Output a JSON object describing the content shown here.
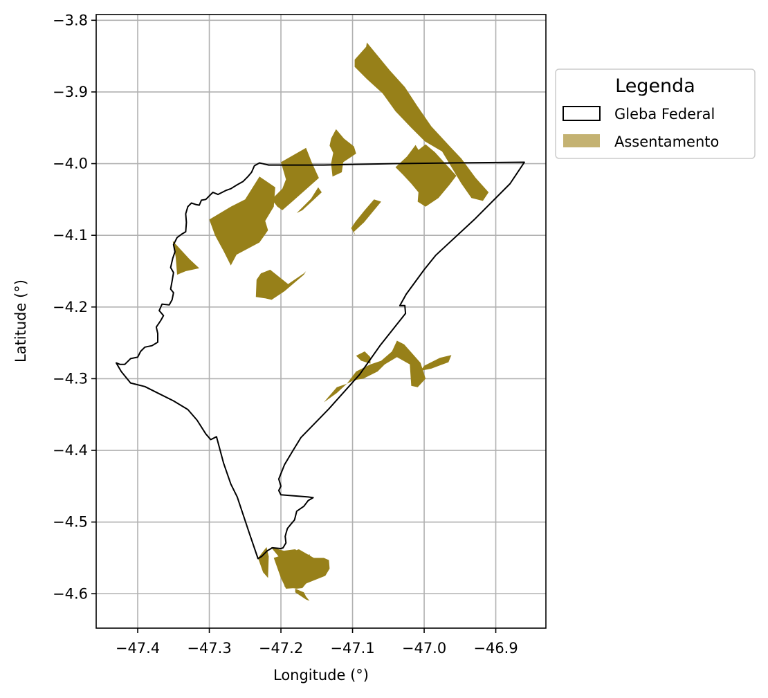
{
  "chart_data": {
    "type": "map",
    "xlabel": "Longitude (°)",
    "ylabel": "Latitude (°)",
    "xlim": [
      -47.458,
      -46.83
    ],
    "ylim": [
      -4.648,
      -3.792
    ],
    "x_ticks": [
      -47.4,
      -47.3,
      -47.2,
      -47.1,
      -47.0,
      -46.9
    ],
    "x_tick_labels": [
      "−47.4",
      "−47.3",
      "−47.2",
      "−47.1",
      "−47.0",
      "−46.9"
    ],
    "y_ticks": [
      -3.8,
      -3.9,
      -4.0,
      -4.1,
      -4.2,
      -4.3,
      -4.4,
      -4.5,
      -4.6
    ],
    "y_tick_labels": [
      "−3.8",
      "−3.9",
      "−4.0",
      "−4.1",
      "−4.2",
      "−4.3",
      "−4.4",
      "−4.5",
      "−4.6"
    ],
    "grid": true,
    "legend": {
      "title": "Legenda",
      "placement": "outside-right-top",
      "entries": [
        {
          "label": "Gleba Federal",
          "style": "outline",
          "edge_color": "#000000"
        },
        {
          "label": "Assentamento",
          "style": "fill",
          "color": "#c4b272"
        }
      ]
    },
    "colors": {
      "assentamento": "#978019",
      "gleba_edge": "#000000",
      "grid": "#b0b0b0"
    },
    "gleba_federal": [
      [
        -47.23,
        -3.999
      ],
      [
        -47.217,
        -4.002
      ],
      [
        -47.14,
        -4.002
      ],
      [
        -47.04,
        -4.0
      ],
      [
        -46.96,
        -3.999
      ],
      [
        -46.86,
        -3.998
      ],
      [
        -46.88,
        -4.028
      ],
      [
        -46.93,
        -4.078
      ],
      [
        -46.984,
        -4.128
      ],
      [
        -47.0,
        -4.148
      ],
      [
        -47.025,
        -4.182
      ],
      [
        -47.034,
        -4.198
      ],
      [
        -47.027,
        -4.198
      ],
      [
        -47.026,
        -4.209
      ],
      [
        -47.061,
        -4.253
      ],
      [
        -47.09,
        -4.294
      ],
      [
        -47.133,
        -4.342
      ],
      [
        -47.172,
        -4.382
      ],
      [
        -47.183,
        -4.4
      ],
      [
        -47.195,
        -4.42
      ],
      [
        -47.203,
        -4.44
      ],
      [
        -47.2,
        -4.45
      ],
      [
        -47.203,
        -4.456
      ],
      [
        -47.2,
        -4.462
      ],
      [
        -47.162,
        -4.465
      ],
      [
        -47.155,
        -4.466
      ],
      [
        -47.162,
        -4.47
      ],
      [
        -47.168,
        -4.478
      ],
      [
        -47.178,
        -4.485
      ],
      [
        -47.181,
        -4.497
      ],
      [
        -47.186,
        -4.503
      ],
      [
        -47.191,
        -4.509
      ],
      [
        -47.193,
        -4.516
      ],
      [
        -47.194,
        -4.52
      ],
      [
        -47.193,
        -4.529
      ],
      [
        -47.197,
        -4.536
      ],
      [
        -47.2,
        -4.537
      ],
      [
        -47.212,
        -4.536
      ],
      [
        -47.219,
        -4.54
      ],
      [
        -47.227,
        -4.548
      ],
      [
        -47.232,
        -4.551
      ],
      [
        -47.244,
        -4.516
      ],
      [
        -47.261,
        -4.465
      ],
      [
        -47.27,
        -4.447
      ],
      [
        -47.28,
        -4.418
      ],
      [
        -47.29,
        -4.381
      ],
      [
        -47.298,
        -4.385
      ],
      [
        -47.305,
        -4.377
      ],
      [
        -47.317,
        -4.358
      ],
      [
        -47.33,
        -4.343
      ],
      [
        -47.35,
        -4.331
      ],
      [
        -47.37,
        -4.321
      ],
      [
        -47.39,
        -4.311
      ],
      [
        -47.41,
        -4.306
      ],
      [
        -47.423,
        -4.29
      ],
      [
        -47.43,
        -4.278
      ],
      [
        -47.425,
        -4.28
      ],
      [
        -47.418,
        -4.28
      ],
      [
        -47.41,
        -4.272
      ],
      [
        -47.4,
        -4.27
      ],
      [
        -47.396,
        -4.262
      ],
      [
        -47.39,
        -4.256
      ],
      [
        -47.38,
        -4.254
      ],
      [
        -47.372,
        -4.249
      ],
      [
        -47.372,
        -4.237
      ],
      [
        -47.374,
        -4.228
      ],
      [
        -47.368,
        -4.219
      ],
      [
        -47.364,
        -4.212
      ],
      [
        -47.37,
        -4.205
      ],
      [
        -47.366,
        -4.196
      ],
      [
        -47.356,
        -4.197
      ],
      [
        -47.352,
        -4.19
      ],
      [
        -47.35,
        -4.18
      ],
      [
        -47.354,
        -4.175
      ],
      [
        -47.352,
        -4.164
      ],
      [
        -47.35,
        -4.152
      ],
      [
        -47.354,
        -4.145
      ],
      [
        -47.351,
        -4.132
      ],
      [
        -47.348,
        -4.123
      ],
      [
        -47.35,
        -4.113
      ],
      [
        -47.345,
        -4.103
      ],
      [
        -47.338,
        -4.098
      ],
      [
        -47.333,
        -4.095
      ],
      [
        -47.332,
        -4.082
      ],
      [
        -47.333,
        -4.07
      ],
      [
        -47.33,
        -4.06
      ],
      [
        -47.325,
        -4.055
      ],
      [
        -47.319,
        -4.057
      ],
      [
        -47.314,
        -4.058
      ],
      [
        -47.311,
        -4.051
      ],
      [
        -47.305,
        -4.05
      ],
      [
        -47.3,
        -4.045
      ],
      [
        -47.295,
        -4.04
      ],
      [
        -47.288,
        -4.043
      ],
      [
        -47.282,
        -4.04
      ],
      [
        -47.276,
        -4.037
      ],
      [
        -47.27,
        -4.035
      ],
      [
        -47.262,
        -4.03
      ],
      [
        -47.253,
        -4.025
      ],
      [
        -47.246,
        -4.018
      ],
      [
        -47.241,
        -4.012
      ],
      [
        -47.237,
        -4.003
      ],
      [
        -47.23,
        -3.999
      ]
    ],
    "assentamentos": [
      [
        [
          -47.097,
          -3.855
        ],
        [
          -47.081,
          -3.837
        ],
        [
          -47.08,
          -3.831
        ],
        [
          -47.048,
          -3.87
        ],
        [
          -47.027,
          -3.893
        ],
        [
          -47.01,
          -3.919
        ],
        [
          -46.99,
          -3.948
        ],
        [
          -46.965,
          -3.975
        ],
        [
          -46.948,
          -3.993
        ],
        [
          -46.928,
          -4.02
        ],
        [
          -46.91,
          -4.04
        ],
        [
          -46.918,
          -4.052
        ],
        [
          -46.934,
          -4.048
        ],
        [
          -46.948,
          -4.028
        ],
        [
          -46.96,
          -4.008
        ],
        [
          -46.975,
          -3.983
        ],
        [
          -46.999,
          -3.969
        ],
        [
          -47.018,
          -3.95
        ],
        [
          -47.04,
          -3.927
        ],
        [
          -47.058,
          -3.902
        ],
        [
          -47.08,
          -3.882
        ],
        [
          -47.097,
          -3.865
        ]
      ],
      [
        [
          -47.04,
          -4.005
        ],
        [
          -47.024,
          -3.99
        ],
        [
          -47.012,
          -3.974
        ],
        [
          -47.008,
          -3.981
        ],
        [
          -46.998,
          -3.973
        ],
        [
          -46.985,
          -3.984
        ],
        [
          -46.955,
          -4.017
        ],
        [
          -46.965,
          -4.03
        ],
        [
          -46.98,
          -4.048
        ],
        [
          -46.998,
          -4.06
        ],
        [
          -47.009,
          -4.053
        ],
        [
          -47.008,
          -4.04
        ],
        [
          -47.018,
          -4.028
        ],
        [
          -47.03,
          -4.015
        ]
      ],
      [
        [
          -47.13,
          -3.965
        ],
        [
          -47.123,
          -3.952
        ],
        [
          -47.112,
          -3.965
        ],
        [
          -47.098,
          -3.976
        ],
        [
          -47.095,
          -3.986
        ],
        [
          -47.113,
          -3.998
        ],
        [
          -47.115,
          -4.012
        ],
        [
          -47.128,
          -4.018
        ],
        [
          -47.13,
          -4.0
        ],
        [
          -47.127,
          -3.985
        ],
        [
          -47.132,
          -3.975
        ]
      ],
      [
        [
          -47.2,
          -3.998
        ],
        [
          -47.165,
          -3.978
        ],
        [
          -47.157,
          -3.998
        ],
        [
          -47.147,
          -4.02
        ],
        [
          -47.183,
          -4.052
        ],
        [
          -47.198,
          -4.065
        ],
        [
          -47.205,
          -4.06
        ],
        [
          -47.213,
          -4.05
        ],
        [
          -47.198,
          -4.035
        ],
        [
          -47.193,
          -4.022
        ]
      ],
      [
        [
          -47.148,
          -4.033
        ],
        [
          -47.143,
          -4.04
        ],
        [
          -47.17,
          -4.065
        ],
        [
          -47.178,
          -4.069
        ],
        [
          -47.158,
          -4.049
        ]
      ],
      [
        [
          -47.3,
          -4.078
        ],
        [
          -47.27,
          -4.06
        ],
        [
          -47.25,
          -4.05
        ],
        [
          -47.23,
          -4.018
        ],
        [
          -47.208,
          -4.033
        ],
        [
          -47.21,
          -4.06
        ],
        [
          -47.222,
          -4.08
        ],
        [
          -47.218,
          -4.093
        ],
        [
          -47.23,
          -4.11
        ],
        [
          -47.262,
          -4.127
        ],
        [
          -47.27,
          -4.142
        ],
        [
          -47.28,
          -4.122
        ],
        [
          -47.292,
          -4.1
        ]
      ],
      [
        [
          -47.351,
          -4.108
        ],
        [
          -47.347,
          -4.13
        ],
        [
          -47.345,
          -4.155
        ],
        [
          -47.333,
          -4.15
        ],
        [
          -47.314,
          -4.146
        ],
        [
          -47.328,
          -4.133
        ]
      ],
      [
        [
          -47.083,
          -4.065
        ],
        [
          -47.07,
          -4.05
        ],
        [
          -47.06,
          -4.053
        ],
        [
          -47.084,
          -4.082
        ],
        [
          -47.098,
          -4.095
        ],
        [
          -47.096,
          -4.1
        ],
        [
          -47.102,
          -4.09
        ],
        [
          -47.096,
          -4.081
        ]
      ],
      [
        [
          -47.215,
          -4.148
        ],
        [
          -47.19,
          -4.168
        ],
        [
          -47.168,
          -4.153
        ],
        [
          -47.165,
          -4.15
        ],
        [
          -47.168,
          -4.155
        ],
        [
          -47.195,
          -4.178
        ],
        [
          -47.213,
          -4.19
        ],
        [
          -47.222,
          -4.188
        ],
        [
          -47.235,
          -4.186
        ],
        [
          -47.234,
          -4.162
        ],
        [
          -47.228,
          -4.153
        ]
      ],
      [
        [
          -47.135,
          -4.327
        ],
        [
          -47.122,
          -4.312
        ],
        [
          -47.108,
          -4.307
        ],
        [
          -47.095,
          -4.29
        ],
        [
          -47.075,
          -4.28
        ],
        [
          -47.06,
          -4.275
        ],
        [
          -47.045,
          -4.262
        ],
        [
          -47.038,
          -4.247
        ],
        [
          -47.028,
          -4.252
        ],
        [
          -47.005,
          -4.278
        ],
        [
          -46.998,
          -4.3
        ],
        [
          -47.009,
          -4.312
        ],
        [
          -47.018,
          -4.31
        ],
        [
          -47.02,
          -4.28
        ],
        [
          -47.038,
          -4.27
        ],
        [
          -47.055,
          -4.28
        ],
        [
          -47.065,
          -4.29
        ],
        [
          -47.085,
          -4.3
        ],
        [
          -47.098,
          -4.302
        ],
        [
          -47.108,
          -4.307
        ],
        [
          -47.122,
          -4.32
        ],
        [
          -47.14,
          -4.333
        ]
      ],
      [
        [
          -47.0,
          -4.282
        ],
        [
          -46.978,
          -4.271
        ],
        [
          -46.962,
          -4.267
        ],
        [
          -46.966,
          -4.277
        ],
        [
          -46.99,
          -4.286
        ],
        [
          -47.005,
          -4.289
        ]
      ],
      [
        [
          -47.083,
          -4.262
        ],
        [
          -47.075,
          -4.27
        ],
        [
          -47.075,
          -4.279
        ],
        [
          -47.088,
          -4.275
        ],
        [
          -47.095,
          -4.268
        ]
      ],
      [
        [
          -47.232,
          -4.55
        ],
        [
          -47.22,
          -4.535
        ],
        [
          -47.217,
          -4.548
        ],
        [
          -47.218,
          -4.578
        ],
        [
          -47.225,
          -4.57
        ]
      ],
      [
        [
          -47.196,
          -4.54
        ],
        [
          -47.214,
          -4.535
        ],
        [
          -47.2,
          -4.552
        ],
        [
          -47.195,
          -4.568
        ],
        [
          -47.195,
          -4.59
        ],
        [
          -47.178,
          -4.593
        ],
        [
          -47.17,
          -4.592
        ],
        [
          -47.16,
          -4.58
        ],
        [
          -47.155,
          -4.565
        ],
        [
          -47.16,
          -4.545
        ],
        [
          -47.168,
          -4.548
        ],
        [
          -47.18,
          -4.538
        ]
      ],
      [
        [
          -47.21,
          -4.55
        ],
        [
          -47.195,
          -4.545
        ],
        [
          -47.175,
          -4.538
        ],
        [
          -47.154,
          -4.55
        ],
        [
          -47.14,
          -4.55
        ],
        [
          -47.133,
          -4.553
        ],
        [
          -47.132,
          -4.565
        ],
        [
          -47.138,
          -4.575
        ],
        [
          -47.163,
          -4.585
        ],
        [
          -47.18,
          -4.592
        ],
        [
          -47.193,
          -4.593
        ],
        [
          -47.2,
          -4.578
        ]
      ],
      [
        [
          -47.18,
          -4.593
        ],
        [
          -47.168,
          -4.598
        ],
        [
          -47.165,
          -4.604
        ],
        [
          -47.16,
          -4.61
        ],
        [
          -47.165,
          -4.608
        ],
        [
          -47.18,
          -4.598
        ]
      ]
    ]
  }
}
